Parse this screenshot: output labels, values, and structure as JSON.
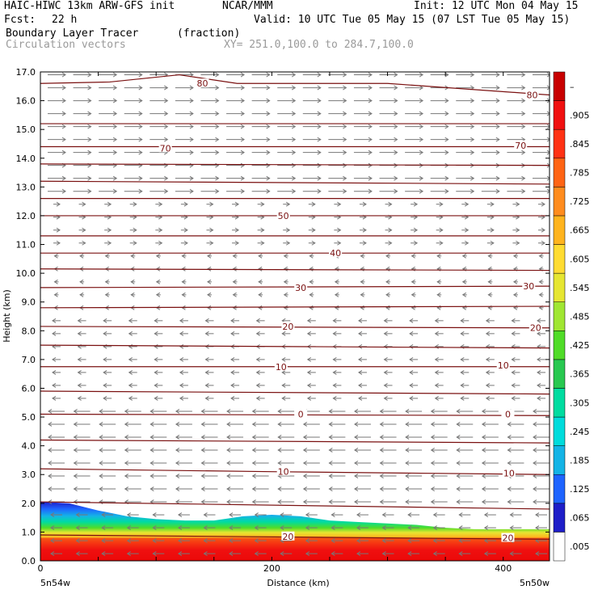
{
  "header": {
    "model": "HAIC-HIWC 13km ARW-GFS init",
    "org": "NCAR/MMM",
    "init": "Init: 12 UTC Mon 04 May 15",
    "fcst_label": "Fcst:",
    "fcst_value": "22 h",
    "valid": "Valid: 10 UTC Tue 05 May 15 (07 LST Tue 05 May 15)",
    "field": "Boundary Layer Tracer",
    "units": "(fraction)",
    "overlay": "Circulation vectors",
    "xy": "XY= 251.0,100.0 to 284.7,100.0"
  },
  "colors": {
    "contour": "#7a1010",
    "vector": "#777777",
    "background": "#ffffff"
  },
  "chart_data": {
    "type": "heatmap",
    "xlabel": "Distance (km)",
    "ylabel": "Height (km)",
    "xlim": [
      0,
      440
    ],
    "ylim": [
      0,
      17
    ],
    "x_ticks": [
      0,
      200,
      400
    ],
    "y_ticks": [
      "0.0",
      "1.0",
      "2.0",
      "3.0",
      "4.0",
      "5.0",
      "6.0",
      "7.0",
      "8.0",
      "9.0",
      "10.0",
      "11.0",
      "12.0",
      "13.0",
      "14.0",
      "15.0",
      "16.0",
      "17.0"
    ],
    "x_end_labels": {
      "left": "5n54w",
      "right": "5n50w"
    },
    "colorbar": {
      "labels": [
        ".005",
        ".065",
        ".125",
        ".185",
        ".245",
        ".305",
        ".365",
        ".425",
        ".485",
        ".545",
        ".605",
        ".665",
        ".725",
        ".785",
        ".845",
        ".905",
        "–"
      ],
      "colors": [
        "#ffffff",
        "#1e1ec8",
        "#1e64ff",
        "#14b4e6",
        "#00dcdc",
        "#00dca0",
        "#28c850",
        "#50dc28",
        "#a0e632",
        "#e6e632",
        "#ffdc32",
        "#ffb41e",
        "#ff8c1e",
        "#ff6414",
        "#ff3214",
        "#f01010",
        "#c80000"
      ]
    },
    "tracer_top_km": [
      [
        0,
        2.05
      ],
      [
        25,
        2.0
      ],
      [
        50,
        1.75
      ],
      [
        75,
        1.55
      ],
      [
        100,
        1.45
      ],
      [
        125,
        1.4
      ],
      [
        150,
        1.4
      ],
      [
        175,
        1.55
      ],
      [
        200,
        1.6
      ],
      [
        225,
        1.55
      ],
      [
        250,
        1.4
      ],
      [
        275,
        1.35
      ],
      [
        300,
        1.3
      ],
      [
        325,
        1.25
      ],
      [
        350,
        1.15
      ],
      [
        375,
        1.1
      ],
      [
        400,
        1.1
      ],
      [
        440,
        1.1
      ]
    ],
    "contours": [
      {
        "level": "80",
        "points": [
          [
            0,
            16.6
          ],
          [
            60,
            16.65
          ],
          [
            120,
            16.9
          ],
          [
            170,
            16.6
          ],
          [
            300,
            16.6
          ],
          [
            440,
            16.2
          ]
        ],
        "labels": [
          [
            140,
            16.6
          ],
          [
            425,
            16.2
          ]
        ]
      },
      {
        "level": "",
        "points": [
          [
            0,
            15.2
          ],
          [
            440,
            15.2
          ]
        ],
        "labels": []
      },
      {
        "level": "70",
        "points": [
          [
            0,
            14.4
          ],
          [
            440,
            14.4
          ]
        ],
        "labels": [
          [
            108,
            14.35
          ],
          [
            415,
            14.45
          ]
        ]
      },
      {
        "level": "",
        "points": [
          [
            0,
            13.8
          ],
          [
            440,
            13.75
          ]
        ],
        "labels": []
      },
      {
        "level": "",
        "points": [
          [
            0,
            13.2
          ],
          [
            440,
            13.1
          ]
        ],
        "labels": []
      },
      {
        "level": "",
        "points": [
          [
            0,
            12.6
          ],
          [
            440,
            12.6
          ]
        ],
        "labels": []
      },
      {
        "level": "50",
        "points": [
          [
            0,
            12.0
          ],
          [
            440,
            12.0
          ]
        ],
        "labels": [
          [
            210,
            12.0
          ]
        ]
      },
      {
        "level": "",
        "points": [
          [
            0,
            11.3
          ],
          [
            440,
            11.3
          ]
        ],
        "labels": []
      },
      {
        "level": "40",
        "points": [
          [
            0,
            10.7
          ],
          [
            440,
            10.7
          ]
        ],
        "labels": [
          [
            255,
            10.7
          ]
        ]
      },
      {
        "level": "",
        "points": [
          [
            0,
            10.15
          ],
          [
            440,
            10.1
          ]
        ],
        "labels": []
      },
      {
        "level": "30",
        "points": [
          [
            0,
            9.5
          ],
          [
            440,
            9.55
          ]
        ],
        "labels": [
          [
            225,
            9.5
          ],
          [
            422,
            9.55
          ]
        ]
      },
      {
        "level": "",
        "points": [
          [
            0,
            8.8
          ],
          [
            440,
            8.85
          ]
        ],
        "labels": []
      },
      {
        "level": "20",
        "points": [
          [
            0,
            8.15
          ],
          [
            440,
            8.1
          ]
        ],
        "labels": [
          [
            214,
            8.15
          ],
          [
            428,
            8.1
          ]
        ]
      },
      {
        "level": "",
        "points": [
          [
            0,
            7.5
          ],
          [
            440,
            7.4
          ]
        ],
        "labels": []
      },
      {
        "level": "10",
        "points": [
          [
            0,
            6.75
          ],
          [
            440,
            6.75
          ]
        ],
        "labels": [
          [
            208,
            6.75
          ],
          [
            400,
            6.8
          ]
        ]
      },
      {
        "level": "",
        "points": [
          [
            0,
            5.9
          ],
          [
            440,
            5.8
          ]
        ],
        "labels": []
      },
      {
        "level": "0",
        "points": [
          [
            0,
            5.1
          ],
          [
            440,
            5.05
          ]
        ],
        "labels": [
          [
            225,
            5.1
          ],
          [
            404,
            5.1
          ]
        ]
      },
      {
        "level": "",
        "points": [
          [
            0,
            4.2
          ],
          [
            440,
            4.1
          ]
        ],
        "labels": []
      },
      {
        "level": "10",
        "points": [
          [
            0,
            3.2
          ],
          [
            200,
            3.1
          ],
          [
            440,
            3.0
          ]
        ],
        "labels": [
          [
            210,
            3.1
          ],
          [
            405,
            3.05
          ]
        ]
      },
      {
        "level": "",
        "points": [
          [
            0,
            2.05
          ],
          [
            440,
            1.8
          ]
        ],
        "labels": []
      },
      {
        "level": "20",
        "points": [
          [
            0,
            0.9
          ],
          [
            440,
            0.75
          ]
        ],
        "labels": [
          [
            214,
            0.85
          ],
          [
            404,
            0.8
          ]
        ]
      }
    ]
  }
}
